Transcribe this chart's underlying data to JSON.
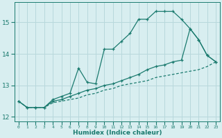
{
  "xlabel": "Humidex (Indice chaleur)",
  "x_values": [
    0,
    1,
    2,
    3,
    4,
    5,
    6,
    7,
    8,
    9,
    10,
    11,
    12,
    13,
    14,
    15,
    16,
    17,
    18,
    19,
    20,
    21,
    22,
    23
  ],
  "line1": [
    12.5,
    12.3,
    12.3,
    12.3,
    12.55,
    12.65,
    12.75,
    13.55,
    13.1,
    13.05,
    14.15,
    14.15,
    14.4,
    14.65,
    15.1,
    15.1,
    15.35,
    15.35,
    15.35,
    15.1,
    14.8,
    14.45,
    13.95,
    13.75
  ],
  "line2": [
    12.5,
    12.3,
    12.3,
    12.3,
    12.5,
    12.55,
    12.65,
    12.75,
    12.85,
    12.9,
    13.0,
    13.05,
    13.15,
    13.25,
    13.35,
    13.5,
    13.6,
    13.65,
    13.75,
    13.8,
    14.8,
    14.45,
    13.95,
    13.75
  ],
  "line3": [
    12.5,
    12.3,
    12.3,
    12.3,
    12.45,
    12.5,
    12.55,
    12.6,
    12.7,
    12.75,
    12.85,
    12.9,
    13.0,
    13.05,
    13.1,
    13.15,
    13.25,
    13.3,
    13.35,
    13.4,
    13.45,
    13.5,
    13.6,
    13.75
  ],
  "line_color": "#1a7a6e",
  "bg_color": "#d8eef0",
  "grid_color": "#b8d8dc",
  "ylim": [
    11.85,
    15.65
  ],
  "yticks": [
    12,
    13,
    14,
    15
  ],
  "xlim": [
    -0.5,
    23.5
  ]
}
